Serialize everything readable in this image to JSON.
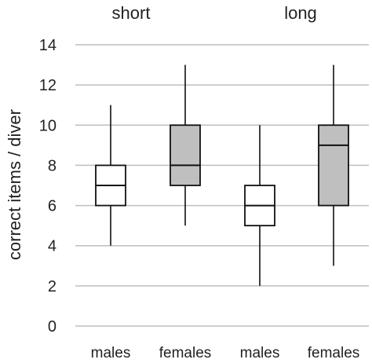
{
  "chart_data": {
    "type": "boxplot",
    "title": "",
    "xlabel": "",
    "ylabel": "correct items / diver",
    "ylim": [
      0,
      14
    ],
    "y_ticks": [
      0,
      2,
      4,
      6,
      8,
      10,
      12,
      14
    ],
    "grid": true,
    "groups": [
      "short",
      "long"
    ],
    "categories": [
      "males",
      "females",
      "males",
      "females"
    ],
    "boxes": [
      {
        "group": "short",
        "category": "males",
        "min": 4,
        "q1": 6,
        "median": 7,
        "q3": 8,
        "max": 11,
        "fill": "#ffffff"
      },
      {
        "group": "short",
        "category": "females",
        "min": 5,
        "q1": 7,
        "median": 8,
        "q3": 10,
        "max": 13,
        "fill": "#bfbfbf"
      },
      {
        "group": "long",
        "category": "males",
        "min": 2,
        "q1": 5,
        "median": 6,
        "q3": 7,
        "max": 10,
        "fill": "#ffffff"
      },
      {
        "group": "long",
        "category": "females",
        "min": 3,
        "q1": 6,
        "median": 9,
        "q3": 10,
        "max": 13,
        "fill": "#bfbfbf"
      }
    ],
    "colors": {
      "grid": "#bfbfbf",
      "stroke": "#111111",
      "text": "#222222"
    }
  }
}
